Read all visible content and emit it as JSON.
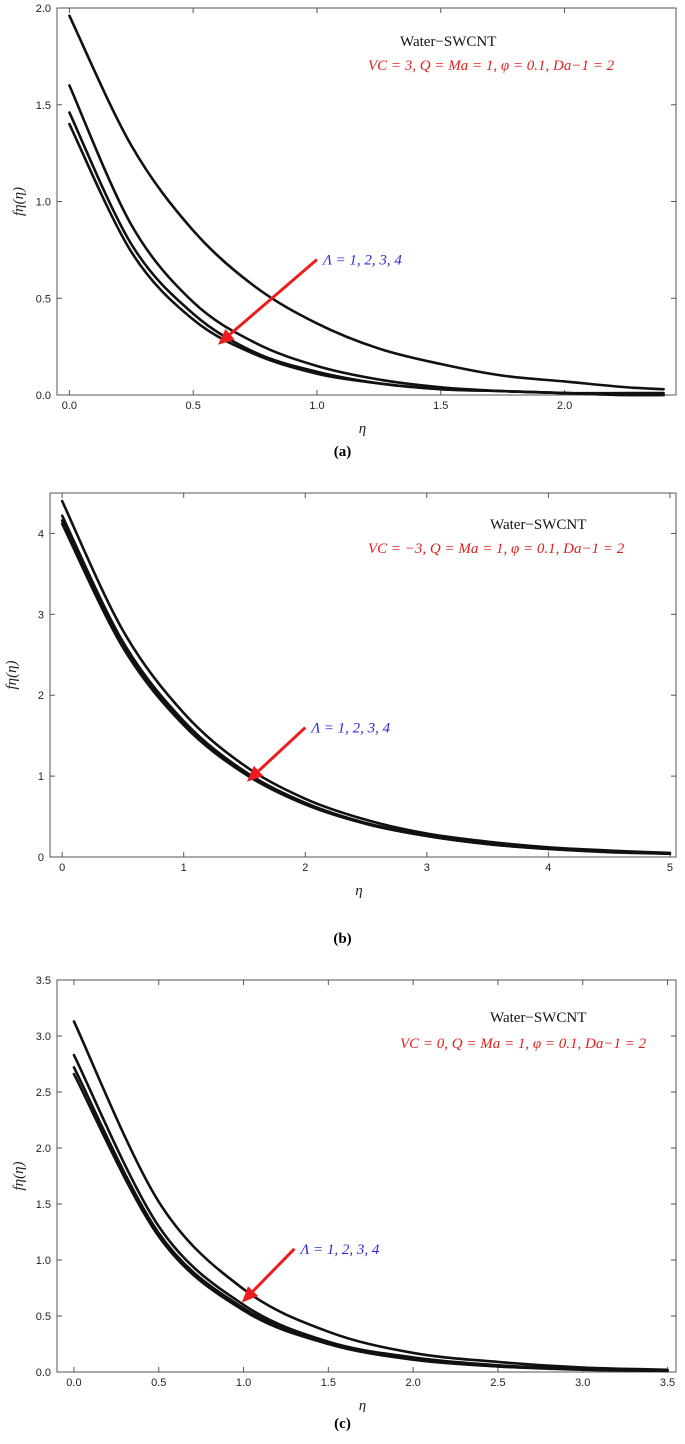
{
  "chart_data": [
    {
      "type": "line",
      "caption": "(a)",
      "xlabel": "η",
      "ylabel": "fη(η)",
      "xlim": [
        -0.05,
        2.45
      ],
      "ylim": [
        0,
        2.0
      ],
      "xticks": [
        "0.0",
        "0.5",
        "1.0",
        "1.5",
        "2.0"
      ],
      "yticks": [
        "0.0",
        "0.5",
        "1.0",
        "1.5",
        "2.0"
      ],
      "fluid_label": "Water−SWCNT",
      "param_label": "VC = 3,  Q = Ma = 1, φ = 0.1, Da−1 = 2",
      "lambda_label": "Λ = 1, 2, 3, 4",
      "arrow": {
        "from": [
          1.0,
          0.7
        ],
        "to": [
          0.6,
          0.26
        ]
      },
      "series": [
        {
          "x": [
            0.0,
            0.25,
            0.5,
            0.75,
            1.0,
            1.25,
            1.5,
            1.75,
            2.0,
            2.25,
            2.4
          ],
          "values": [
            1.96,
            1.29,
            0.85,
            0.56,
            0.37,
            0.24,
            0.16,
            0.1,
            0.07,
            0.04,
            0.03
          ]
        },
        {
          "x": [
            0.0,
            0.25,
            0.5,
            0.75,
            1.0,
            1.25,
            1.5,
            1.75,
            2.0,
            2.25,
            2.4
          ],
          "values": [
            1.6,
            0.88,
            0.48,
            0.27,
            0.15,
            0.08,
            0.04,
            0.02,
            0.01,
            0.01,
            0.01
          ]
        },
        {
          "x": [
            0.0,
            0.25,
            0.5,
            0.75,
            1.0,
            1.25,
            1.5,
            1.75,
            2.0,
            2.25,
            2.4
          ],
          "values": [
            1.46,
            0.78,
            0.42,
            0.22,
            0.12,
            0.06,
            0.03,
            0.02,
            0.01,
            0.0,
            0.0
          ]
        },
        {
          "x": [
            0.0,
            0.25,
            0.5,
            0.75,
            1.0,
            1.25,
            1.5,
            1.75,
            2.0,
            2.25,
            2.4
          ],
          "values": [
            1.4,
            0.74,
            0.39,
            0.21,
            0.11,
            0.06,
            0.03,
            0.02,
            0.01,
            0.0,
            0.0
          ]
        }
      ]
    },
    {
      "type": "line",
      "caption": "(b)",
      "xlabel": "η",
      "ylabel": "fη(η)",
      "xlim": [
        -0.1,
        5.05
      ],
      "ylim": [
        0,
        4.5
      ],
      "xticks": [
        "0",
        "1",
        "2",
        "3",
        "4",
        "5"
      ],
      "yticks": [
        "0",
        "1",
        "2",
        "3",
        "4"
      ],
      "fluid_label": "Water−SWCNT",
      "param_label": "VC = −3,  Q = Ma = 1, φ = 0.1, Da−1 = 2",
      "lambda_label": "Λ = 1, 2, 3, 4",
      "arrow": {
        "from": [
          2.0,
          1.6
        ],
        "to": [
          1.52,
          0.93
        ]
      },
      "series": [
        {
          "x": [
            0,
            0.5,
            1,
            1.5,
            2,
            2.5,
            3,
            3.5,
            4,
            4.5,
            5
          ],
          "values": [
            4.4,
            2.8,
            1.78,
            1.13,
            0.72,
            0.46,
            0.29,
            0.19,
            0.12,
            0.08,
            0.05
          ]
        },
        {
          "x": [
            0,
            0.5,
            1,
            1.5,
            2,
            2.5,
            3,
            3.5,
            4,
            4.5,
            5
          ],
          "values": [
            4.22,
            2.66,
            1.68,
            1.06,
            0.67,
            0.42,
            0.27,
            0.17,
            0.11,
            0.07,
            0.04
          ]
        },
        {
          "x": [
            0,
            0.5,
            1,
            1.5,
            2,
            2.5,
            3,
            3.5,
            4,
            4.5,
            5
          ],
          "values": [
            4.16,
            2.62,
            1.65,
            1.04,
            0.66,
            0.41,
            0.26,
            0.16,
            0.1,
            0.07,
            0.04
          ]
        },
        {
          "x": [
            0,
            0.5,
            1,
            1.5,
            2,
            2.5,
            3,
            3.5,
            4,
            4.5,
            5
          ],
          "values": [
            4.12,
            2.59,
            1.63,
            1.03,
            0.65,
            0.41,
            0.26,
            0.16,
            0.1,
            0.06,
            0.04
          ]
        }
      ]
    },
    {
      "type": "line",
      "caption": "(c)",
      "xlabel": "η",
      "ylabel": "fη(η)",
      "xlim": [
        -0.1,
        3.55
      ],
      "ylim": [
        0,
        3.5
      ],
      "xticks": [
        "0.0",
        "0.5",
        "1.0",
        "1.5",
        "2.0",
        "2.5",
        "3.0",
        "3.5"
      ],
      "yticks": [
        "0.0",
        "0.5",
        "1.0",
        "1.5",
        "2.0",
        "2.5",
        "3.0",
        "3.5"
      ],
      "fluid_label": "Water−SWCNT",
      "param_label": "VC = 0,  Q = Ma = 1, φ = 0.1, Da−1 = 2",
      "lambda_label": "Λ = 1, 2, 3, 4",
      "arrow": {
        "from": [
          1.3,
          1.1
        ],
        "to": [
          0.99,
          0.62
        ]
      },
      "series": [
        {
          "x": [
            0,
            0.5,
            1,
            1.5,
            2,
            2.5,
            3,
            3.5
          ],
          "values": [
            3.13,
            1.52,
            0.74,
            0.36,
            0.17,
            0.09,
            0.04,
            0.02
          ]
        },
        {
          "x": [
            0,
            0.5,
            1,
            1.5,
            2,
            2.5,
            3,
            3.5
          ],
          "values": [
            2.83,
            1.3,
            0.6,
            0.27,
            0.13,
            0.06,
            0.03,
            0.01
          ]
        },
        {
          "x": [
            0,
            0.5,
            1,
            1.5,
            2,
            2.5,
            3,
            3.5
          ],
          "values": [
            2.72,
            1.24,
            0.57,
            0.26,
            0.12,
            0.05,
            0.03,
            0.01
          ]
        },
        {
          "x": [
            0,
            0.5,
            1,
            1.5,
            2,
            2.5,
            3,
            3.5
          ],
          "values": [
            2.66,
            1.21,
            0.55,
            0.25,
            0.11,
            0.05,
            0.02,
            0.01
          ]
        }
      ]
    }
  ],
  "colors": {
    "curve": "#111111",
    "arrow": "#ee1c1c",
    "param_text": "#e02020",
    "lambda_text": "#2a2ad8",
    "frame": "#555555"
  }
}
